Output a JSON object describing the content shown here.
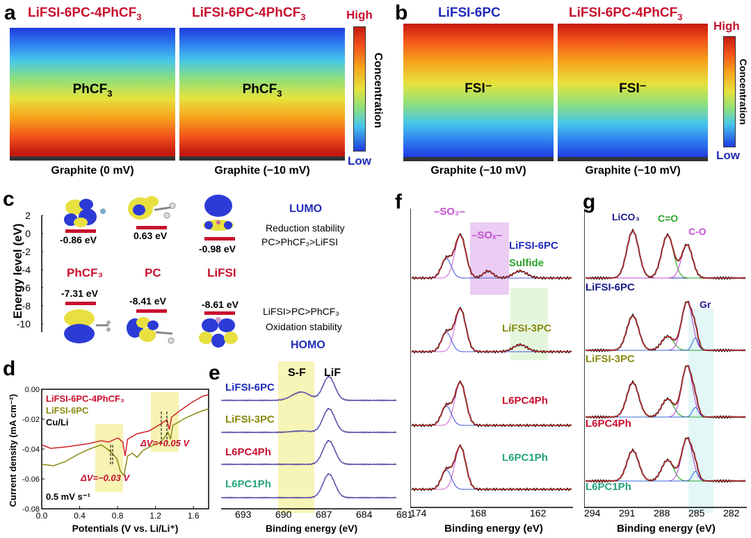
{
  "panel_a": {
    "letter": "a",
    "left_title": "LiFSI-6PC-4PhCF",
    "left_title_sub": "3",
    "right_title": "LiFSI-6PC-4PhCF",
    "right_title_sub": "3",
    "left_center": "PhCF",
    "left_center_sub": "3",
    "right_center": "PhCF",
    "right_center_sub": "3",
    "left_caption": "Graphite (0 mV)",
    "right_caption": "Graphite (−10 mV)",
    "colorbar_high": "High",
    "colorbar_low": "Low",
    "colorbar_label": "Concentration"
  },
  "panel_b": {
    "letter": "b",
    "left_title": "LiFSI-6PC",
    "right_title": "LiFSI-6PC-4PhCF",
    "right_title_sub": "3",
    "left_center": "FSI⁻",
    "right_center": "FSI⁻",
    "left_caption": "Graphite (−10 mV)",
    "right_caption": "Graphite (−10 mV)",
    "colorbar_high": "High",
    "colorbar_low": "Low",
    "colorbar_label": "Concentration"
  },
  "panel_c": {
    "letter": "c",
    "ylabel": "Energy level (eV)",
    "yticks": [
      "2",
      "0",
      "-2",
      "-4",
      "-6",
      "-8",
      "-10"
    ],
    "lumo_values": [
      "-0.86 eV",
      "0.63 eV",
      "-0.98 eV"
    ],
    "homo_values": [
      "-7.31 eV",
      "-8.41 eV",
      "-8.61 eV"
    ],
    "molecules": [
      "PhCF₃",
      "PC",
      "LiFSI"
    ],
    "lumo_label": "LUMO",
    "homo_label": "HOMO",
    "reduction_line1": "Reduction stability",
    "reduction_line2": "PC>PhCF₃>LiFSI",
    "oxidation_line1": "LiFSI>PC>PhCF₃",
    "oxidation_line2": "Oxidation stability"
  },
  "panel_d": {
    "letter": "d",
    "ylabel": "Current density (mA cm⁻²)",
    "xlabel": "Potentials (V vs. Li/Li⁺)",
    "yticks": [
      "0.00",
      "-0.02",
      "-0.04",
      "-0.06",
      "-0.08"
    ],
    "xticks": [
      "0.0",
      "0.4",
      "0.8",
      "1.2",
      "1.6"
    ],
    "legend": [
      "LiFSI-6PC-4PhCF₃",
      "LiFSI-6PC",
      "Cu/Li"
    ],
    "dv1": "ΔV=−0.03 V",
    "dv2": "ΔV=+0.05 V",
    "scan_rate": "0.5 mV s⁻¹"
  },
  "panel_e": {
    "letter": "e",
    "xlabel": "Binding energy (eV)",
    "xticks": [
      "693",
      "690",
      "687",
      "684",
      "681"
    ],
    "region_sf": "S-F",
    "region_lif": "LiF",
    "samples": [
      "LiFSI-6PC",
      "LiFSI-3PC",
      "L6PC4Ph",
      "L6PC1Ph"
    ]
  },
  "panel_f": {
    "letter": "f",
    "xlabel": "Binding energy (eV)",
    "xticks": [
      "174",
      "168",
      "162"
    ],
    "so2": "–SO₂–",
    "sox": "–SOₓ–",
    "sulfide": "Sulfide",
    "samples": [
      "LiFSI-6PC",
      "LiFSI-3PC",
      "L6PC4Ph",
      "L6PC1Ph"
    ]
  },
  "panel_g": {
    "letter": "g",
    "xlabel": "Binding energy (eV)",
    "xticks": [
      "294",
      "291",
      "288",
      "285",
      "282"
    ],
    "lico3": "LiCO₃",
    "ceo": "C=O",
    "co": "C-O",
    "gr": "Gr",
    "samples": [
      "LiFSI-6PC",
      "LiFSI-3PC",
      "L6PC4Ph",
      "L6PC1Ph"
    ]
  },
  "colors": {
    "red": "#c8102e",
    "blue": "#1f2bb8",
    "olive": "#8a8a12",
    "teal": "#24a47c",
    "magenta": "#c24fd0",
    "green": "#2aa12a"
  }
}
